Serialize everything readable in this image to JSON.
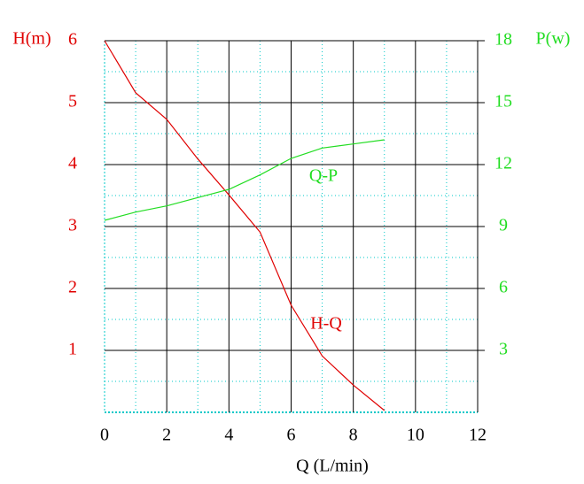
{
  "chart_data": {
    "type": "line",
    "x_label": "Q (L/min)",
    "y_label": "H(m)",
    "y2_label": "P(w)",
    "x": [
      0,
      1,
      2,
      3,
      4,
      5,
      6,
      7,
      8,
      9
    ],
    "series": [
      {
        "name": "H-Q",
        "color": "#e00000",
        "values": [
          6,
          5.16,
          4.73,
          4.09,
          3.51,
          2.91,
          1.73,
          0.91,
          0.44,
          0.03
        ]
      },
      {
        "name": "Q-P",
        "color": "#22dd22",
        "axis": "y2",
        "values": [
          9.3,
          9.7,
          10.0,
          10.4,
          10.8,
          11.5,
          12.3,
          12.8,
          13.0,
          13.2
        ]
      }
    ],
    "xlim": [
      0,
      12
    ],
    "xticks": [
      0,
      2,
      4,
      6,
      8,
      10,
      12
    ],
    "ylim": [
      0,
      6
    ],
    "yticks": [
      1,
      2,
      3,
      4,
      5,
      6
    ],
    "y2lim": [
      0,
      18
    ],
    "y2ticks": [
      3,
      6,
      9,
      12,
      15,
      18
    ],
    "grid": true
  }
}
